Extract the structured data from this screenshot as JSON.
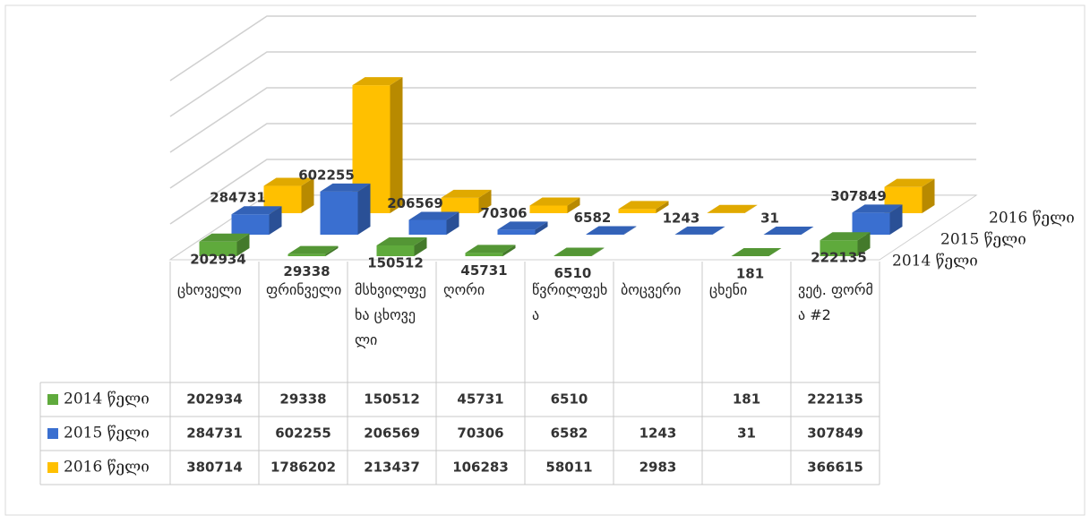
{
  "chart_data": {
    "type": "bar3d",
    "categories": [
      "ცხოველი",
      "ფრინველი",
      "მსხვილფეხა ცხოველი",
      "ღორი",
      "წვრილფეხა",
      "ბოცვერი",
      "ცხენი",
      "ვეტ. ფორმა #2"
    ],
    "series": [
      {
        "name": "2014 წელი",
        "color": "#5faa3c",
        "values": [
          202934,
          29338,
          150512,
          45731,
          6510,
          null,
          181,
          222135
        ]
      },
      {
        "name": "2015 წელი",
        "color": "#3a6fd0",
        "values": [
          284731,
          602255,
          206569,
          70306,
          6582,
          1243,
          31,
          307849
        ]
      },
      {
        "name": "2016 წელი",
        "color": "#ffc000",
        "values": [
          380714,
          1786202,
          213437,
          106283,
          58011,
          2983,
          null,
          366615
        ]
      }
    ],
    "labeled_series": [
      0,
      1
    ],
    "ylim": [
      0,
      2500000
    ],
    "yticks": [
      0,
      500000,
      1000000,
      1500000,
      2000000,
      2500000
    ],
    "grid": true
  }
}
